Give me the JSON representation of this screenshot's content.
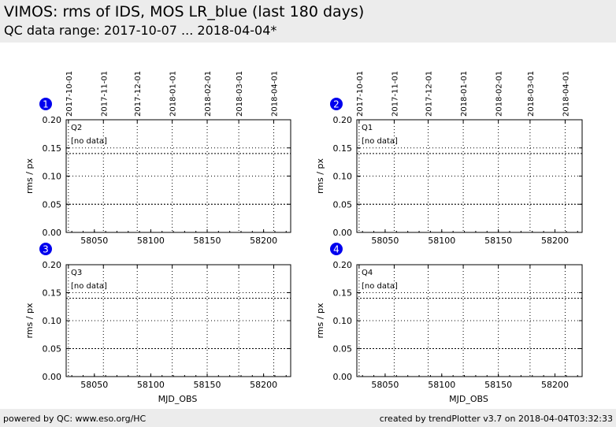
{
  "header": {
    "title": "VIMOS: rms of IDS, MOS LR_blue (last 180 days)",
    "subtitle": "QC data range: 2017-10-07 ... 2018-04-04*"
  },
  "footer": {
    "left": "powered by QC: www.eso.org/HC",
    "right": "created by trendPlotter v3.7 on 2018-04-04T03:32:33"
  },
  "colors": {
    "badge": "#0000ee",
    "header_bg": "#ececec",
    "grid": "#000000",
    "threshold": "#000000"
  },
  "chart_data": [
    {
      "type": "scatter",
      "badge": "1",
      "quadrant_label": "Q2",
      "status_text": "[no data]",
      "xlabel": "",
      "ylabel": "rms / px",
      "xlim": [
        58025,
        58224
      ],
      "ylim": [
        0.0,
        0.2
      ],
      "x_ticks": [
        58050,
        58100,
        58150,
        58200
      ],
      "y_ticks": [
        0.0,
        0.05,
        0.1,
        0.15,
        0.2
      ],
      "date_ticks": [
        {
          "label": "2017-10-01",
          "mjd": 58027
        },
        {
          "label": "2017-11-01",
          "mjd": 58058
        },
        {
          "label": "2017-12-01",
          "mjd": 58088
        },
        {
          "label": "2018-01-01",
          "mjd": 58119
        },
        {
          "label": "2018-02-01",
          "mjd": 58150
        },
        {
          "label": "2018-03-01",
          "mjd": 58178
        },
        {
          "label": "2018-04-01",
          "mjd": 58209
        }
      ],
      "threshold_lines": [
        0.14,
        0.05
      ],
      "grid": true,
      "series": []
    },
    {
      "type": "scatter",
      "badge": "2",
      "quadrant_label": "Q1",
      "status_text": "[no data]",
      "xlabel": "",
      "ylabel": "rms / px",
      "xlim": [
        58025,
        58224
      ],
      "ylim": [
        0.0,
        0.2
      ],
      "x_ticks": [
        58050,
        58100,
        58150,
        58200
      ],
      "y_ticks": [
        0.0,
        0.05,
        0.1,
        0.15,
        0.2
      ],
      "date_ticks": [
        {
          "label": "2017-10-01",
          "mjd": 58027
        },
        {
          "label": "2017-11-01",
          "mjd": 58058
        },
        {
          "label": "2017-12-01",
          "mjd": 58088
        },
        {
          "label": "2018-01-01",
          "mjd": 58119
        },
        {
          "label": "2018-02-01",
          "mjd": 58150
        },
        {
          "label": "2018-03-01",
          "mjd": 58178
        },
        {
          "label": "2018-04-01",
          "mjd": 58209
        }
      ],
      "threshold_lines": [
        0.14,
        0.05
      ],
      "grid": true,
      "series": []
    },
    {
      "type": "scatter",
      "badge": "3",
      "quadrant_label": "Q3",
      "status_text": "[no data]",
      "xlabel": "MJD_OBS",
      "ylabel": "rms / px",
      "xlim": [
        58025,
        58224
      ],
      "ylim": [
        0.0,
        0.2
      ],
      "x_ticks": [
        58050,
        58100,
        58150,
        58200
      ],
      "y_ticks": [
        0.0,
        0.05,
        0.1,
        0.15,
        0.2
      ],
      "date_ticks": [
        {
          "label": "",
          "mjd": 58027
        },
        {
          "label": "",
          "mjd": 58058
        },
        {
          "label": "",
          "mjd": 58088
        },
        {
          "label": "",
          "mjd": 58119
        },
        {
          "label": "",
          "mjd": 58150
        },
        {
          "label": "",
          "mjd": 58178
        },
        {
          "label": "",
          "mjd": 58209
        }
      ],
      "threshold_lines": [
        0.14,
        0.05
      ],
      "grid": true,
      "series": []
    },
    {
      "type": "scatter",
      "badge": "4",
      "quadrant_label": "Q4",
      "status_text": "[no data]",
      "xlabel": "MJD_OBS",
      "ylabel": "rms / px",
      "xlim": [
        58025,
        58224
      ],
      "ylim": [
        0.0,
        0.2
      ],
      "x_ticks": [
        58050,
        58100,
        58150,
        58200
      ],
      "y_ticks": [
        0.0,
        0.05,
        0.1,
        0.15,
        0.2
      ],
      "date_ticks": [
        {
          "label": "",
          "mjd": 58027
        },
        {
          "label": "",
          "mjd": 58058
        },
        {
          "label": "",
          "mjd": 58088
        },
        {
          "label": "",
          "mjd": 58119
        },
        {
          "label": "",
          "mjd": 58150
        },
        {
          "label": "",
          "mjd": 58178
        },
        {
          "label": "",
          "mjd": 58209
        }
      ],
      "threshold_lines": [
        0.14,
        0.05
      ],
      "grid": true,
      "series": []
    }
  ]
}
